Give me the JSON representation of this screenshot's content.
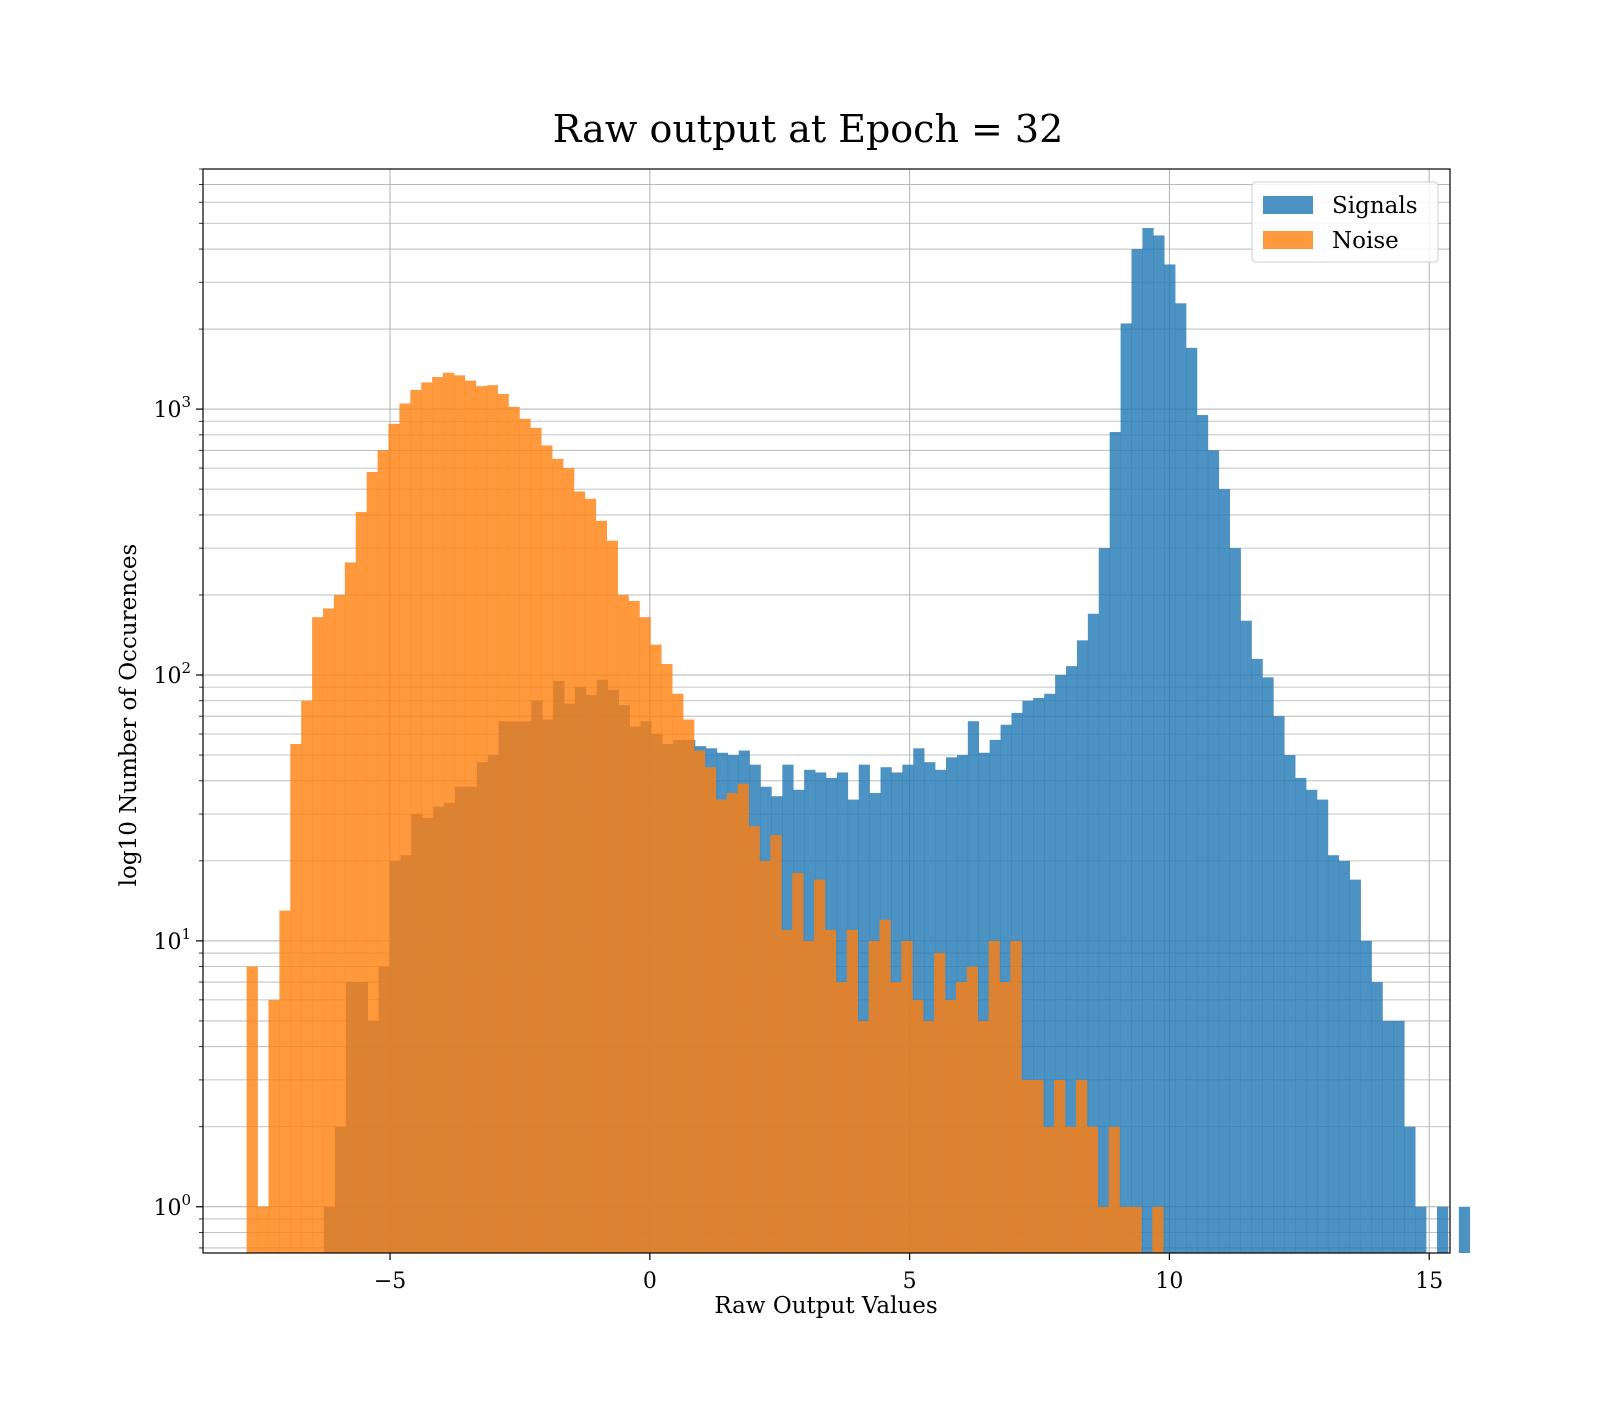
{
  "chart_data": {
    "type": "bar",
    "title": "Raw output at Epoch = 32",
    "xlabel": "Raw Output Values",
    "ylabel": "log10 Number of Occurences",
    "yscale": "log",
    "grid": true,
    "legend_position": "top-right",
    "xlim": [
      -8.6,
      15.4
    ],
    "ylim": [
      0.67,
      8000
    ],
    "xticks": [
      -5,
      0,
      5,
      10,
      15
    ],
    "xtick_labels": [
      "−5",
      "0",
      "5",
      "10",
      "15"
    ],
    "yticks": [
      1,
      10,
      100,
      1000
    ],
    "ytick_labels": [
      {
        "base": "10",
        "exp": "0"
      },
      {
        "base": "10",
        "exp": "1"
      },
      {
        "base": "10",
        "exp": "2"
      },
      {
        "base": "10",
        "exp": "3"
      }
    ],
    "bin_width": 0.21,
    "series": [
      {
        "name": "Signals",
        "color": "#1f77b4",
        "opacity": 0.8,
        "bin_start": -6.27,
        "counts": [
          1,
          2,
          7,
          7,
          5,
          8,
          20,
          21,
          30,
          29,
          32,
          33,
          38,
          38,
          47,
          50,
          67,
          67,
          67,
          80,
          68,
          95,
          78,
          90,
          84,
          96,
          88,
          77,
          64,
          67,
          60,
          55,
          57,
          57,
          54,
          53,
          51,
          50,
          52,
          46,
          38,
          35,
          46,
          37,
          44,
          43,
          41,
          43,
          34,
          46,
          36,
          45,
          43,
          46,
          53,
          47,
          44,
          49,
          50,
          67,
          51,
          57,
          65,
          72,
          80,
          82,
          85,
          100,
          108,
          135,
          170,
          300,
          820,
          2100,
          4000,
          4800,
          4500,
          3500,
          2500,
          1700,
          950,
          700,
          500,
          300,
          160,
          115,
          98,
          70,
          50,
          41,
          37,
          34,
          21,
          20,
          17,
          10,
          7,
          5,
          5,
          2,
          1,
          0,
          1,
          0,
          1
        ]
      },
      {
        "name": "Noise",
        "color": "#ff7f0e",
        "opacity": 0.8,
        "bin_start": -7.76,
        "counts": [
          8,
          1,
          6,
          13,
          55,
          80,
          165,
          178,
          200,
          265,
          410,
          580,
          700,
          880,
          1050,
          1180,
          1260,
          1320,
          1370,
          1340,
          1280,
          1220,
          1230,
          1140,
          1020,
          920,
          850,
          730,
          650,
          600,
          490,
          460,
          380,
          320,
          200,
          190,
          165,
          130,
          110,
          85,
          68,
          52,
          45,
          34,
          36,
          39,
          27,
          20,
          25,
          11,
          18,
          10,
          17,
          11,
          7,
          11,
          5,
          10,
          12,
          7,
          10,
          6,
          5,
          9,
          6,
          7,
          8,
          5,
          10,
          7,
          10,
          3,
          3,
          2,
          3,
          2,
          3,
          2,
          1,
          2,
          1,
          1,
          0,
          1
        ]
      }
    ]
  }
}
